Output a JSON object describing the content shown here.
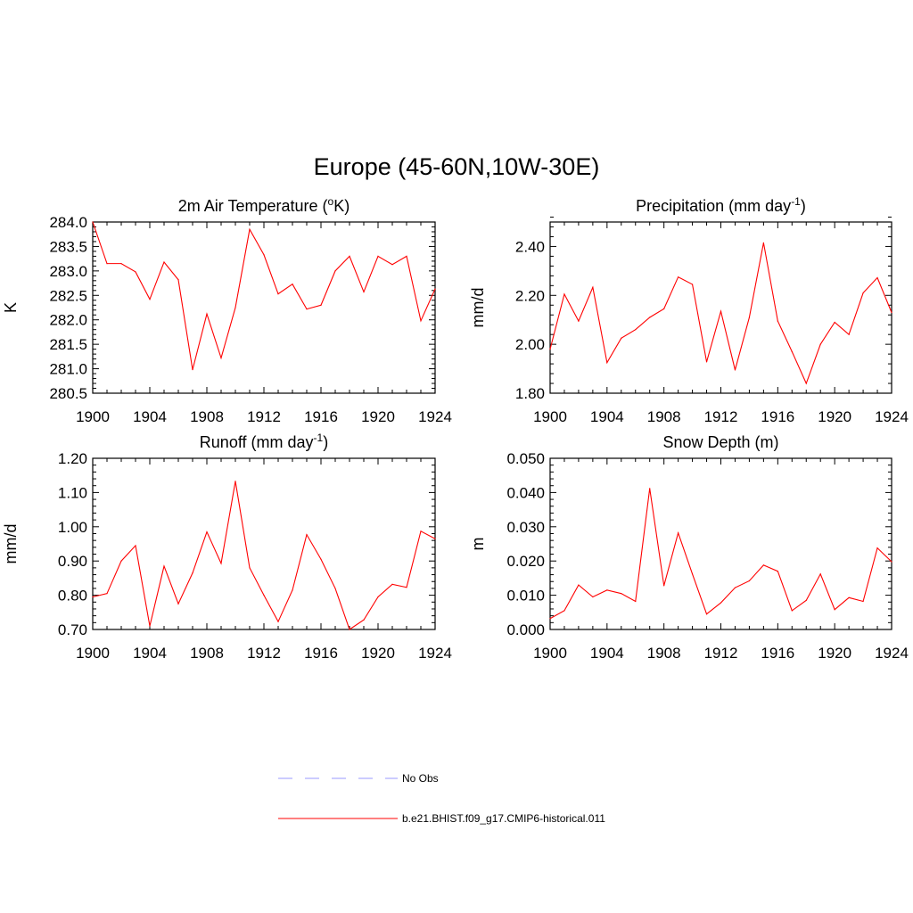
{
  "figure": {
    "title": "Europe (45-60N,10W-30E)"
  },
  "colors": {
    "model_line": "#ff0000",
    "obs_line": "#9999ff",
    "axis": "#000000"
  },
  "legend": {
    "items": [
      {
        "label": "No Obs",
        "style": "dashed"
      },
      {
        "label": "b.e21.BHIST.f09_g17.CMIP6-historical.011",
        "style": "solid"
      }
    ]
  },
  "chart_data": [
    {
      "type": "line",
      "title_main": "2m Air Temperature (",
      "title_sup_pre": "o",
      "title_post": "K)",
      "ylabel": "K",
      "x": [
        1900,
        1901,
        1902,
        1903,
        1904,
        1905,
        1906,
        1907,
        1908,
        1909,
        1910,
        1911,
        1912,
        1913,
        1914,
        1915,
        1916,
        1917,
        1918,
        1919,
        1920,
        1921,
        1922,
        1923,
        1924
      ],
      "values": [
        284.0,
        283.15,
        283.15,
        282.98,
        282.42,
        283.18,
        282.82,
        280.98,
        282.12,
        281.22,
        282.25,
        283.85,
        283.33,
        282.53,
        282.73,
        282.22,
        282.3,
        283.0,
        283.3,
        282.57,
        283.3,
        283.13,
        283.3,
        281.98,
        282.63
      ],
      "xlim": [
        1900,
        1924
      ],
      "ylim": [
        280.5,
        284.0
      ],
      "xticks": [
        "1900",
        "1904",
        "1908",
        "1912",
        "1916",
        "1920",
        "1924"
      ],
      "yticks": [
        "280.5",
        "281.0",
        "281.5",
        "282.0",
        "282.5",
        "283.0",
        "283.5",
        "284.0"
      ]
    },
    {
      "type": "line",
      "title_main": "Precipitation (mm day",
      "title_sup": "-1",
      "title_post": ")",
      "ylabel": "mm/d",
      "x": [
        1900,
        1901,
        1902,
        1903,
        1904,
        1905,
        1906,
        1907,
        1908,
        1909,
        1910,
        1911,
        1912,
        1913,
        1914,
        1915,
        1916,
        1917,
        1918,
        1919,
        1920,
        1921,
        1922,
        1923,
        1924
      ],
      "values": [
        1.98,
        2.205,
        2.095,
        2.233,
        1.925,
        2.025,
        2.06,
        2.11,
        2.145,
        2.275,
        2.245,
        1.928,
        2.135,
        1.895,
        2.11,
        2.415,
        2.095,
        1.97,
        1.84,
        2.0,
        2.09,
        2.04,
        2.21,
        2.272,
        2.13
      ],
      "xlim": [
        1900,
        1924
      ],
      "ylim": [
        1.8,
        2.5
      ],
      "xticks": [
        "1900",
        "1904",
        "1908",
        "1912",
        "1916",
        "1920",
        "1924"
      ],
      "yticks": [
        "1.80",
        "2.00",
        "2.20",
        "2.40"
      ]
    },
    {
      "type": "line",
      "title_main": "Runoff (mm day",
      "title_sup": "-1",
      "title_post": ")",
      "ylabel": "mm/d",
      "x": [
        1900,
        1901,
        1902,
        1903,
        1904,
        1905,
        1906,
        1907,
        1908,
        1909,
        1910,
        1911,
        1912,
        1913,
        1914,
        1915,
        1916,
        1917,
        1918,
        1919,
        1920,
        1921,
        1922,
        1923,
        1924
      ],
      "values": [
        0.795,
        0.805,
        0.9,
        0.945,
        0.71,
        0.885,
        0.775,
        0.865,
        0.985,
        0.893,
        1.133,
        0.88,
        0.8,
        0.723,
        0.815,
        0.977,
        0.905,
        0.82,
        0.7,
        0.728,
        0.795,
        0.832,
        0.823,
        0.987,
        0.965
      ],
      "xlim": [
        1900,
        1924
      ],
      "ylim": [
        0.7,
        1.2
      ],
      "xticks": [
        "1900",
        "1904",
        "1908",
        "1912",
        "1916",
        "1920",
        "1924"
      ],
      "yticks": [
        "0.70",
        "0.80",
        "0.90",
        "1.00",
        "1.10",
        "1.20"
      ]
    },
    {
      "type": "line",
      "title_main": "Snow Depth (m)",
      "ylabel": "m",
      "x": [
        1900,
        1901,
        1902,
        1903,
        1904,
        1905,
        1906,
        1907,
        1908,
        1909,
        1910,
        1911,
        1912,
        1913,
        1914,
        1915,
        1916,
        1917,
        1918,
        1919,
        1920,
        1921,
        1922,
        1923,
        1924
      ],
      "values": [
        0.0032,
        0.0055,
        0.013,
        0.0095,
        0.0115,
        0.0105,
        0.0082,
        0.0412,
        0.0128,
        0.0282,
        0.0162,
        0.0045,
        0.0078,
        0.0122,
        0.0142,
        0.0188,
        0.017,
        0.0055,
        0.0085,
        0.0162,
        0.0058,
        0.0093,
        0.0082,
        0.0238,
        0.0198
      ],
      "xlim": [
        1900,
        1924
      ],
      "ylim": [
        0.0,
        0.05
      ],
      "xticks": [
        "1900",
        "1904",
        "1908",
        "1912",
        "1916",
        "1920",
        "1924"
      ],
      "yticks": [
        "0.000",
        "0.010",
        "0.020",
        "0.030",
        "0.040",
        "0.050"
      ]
    }
  ]
}
